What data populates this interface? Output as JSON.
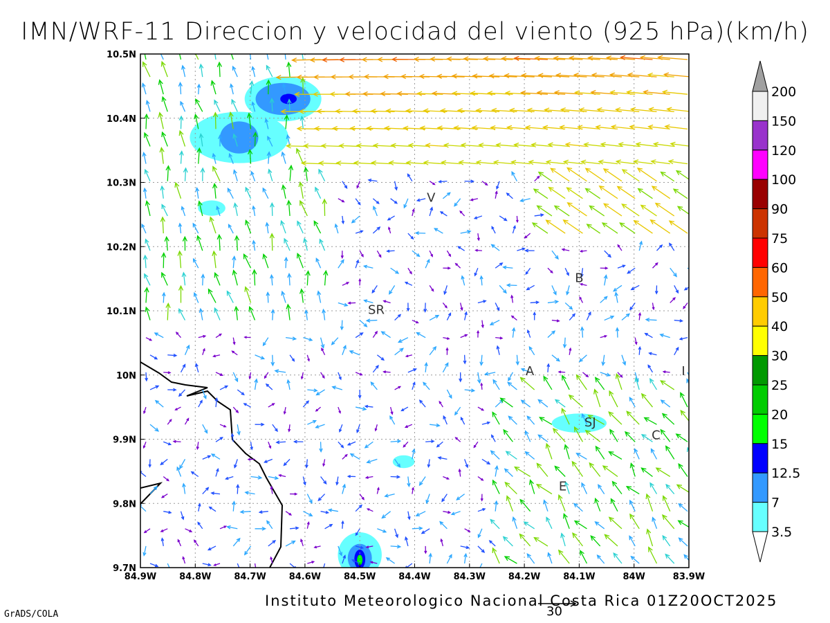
{
  "title": "IMN/WRF-11 Direccion y velocidad del viento (925 hPa)(km/h)",
  "footer": "Instituto Meteorologico Nacional Costa Rica 01Z20OCT2025",
  "software_label": "GrADS/COLA",
  "reference_vector_label": "30",
  "x_ticks": [
    "84.9W",
    "84.8W",
    "84.7W",
    "84.6W",
    "84.5W",
    "84.4W",
    "84.3W",
    "84.2W",
    "84.1W",
    "84W",
    "83.9W"
  ],
  "y_ticks": [
    "10.5N",
    "10.4N",
    "10.3N",
    "10.2N",
    "10.1N",
    "10N",
    "9.9N",
    "9.8N",
    "9.7N"
  ],
  "map_extent": {
    "lon_min": -84.9,
    "lon_max": -83.9,
    "lat_min": 9.7,
    "lat_max": 10.5
  },
  "place_labels": [
    {
      "text": "V",
      "lon": -84.37,
      "lat": 10.27
    },
    {
      "text": "B",
      "lon": -84.1,
      "lat": 10.145
    },
    {
      "text": "SR",
      "lon": -84.47,
      "lat": 10.095
    },
    {
      "text": "A",
      "lon": -84.19,
      "lat": 10.0
    },
    {
      "text": "SJ",
      "lon": -84.08,
      "lat": 9.92
    },
    {
      "text": "C",
      "lon": -83.96,
      "lat": 9.9
    },
    {
      "text": "E",
      "lon": -84.13,
      "lat": 9.82
    },
    {
      "text": "I",
      "lon": -83.91,
      "lat": 10.0
    }
  ],
  "colorbar": {
    "labels": [
      "3.5",
      "7",
      "12.5",
      "15",
      "20",
      "25",
      "30",
      "40",
      "50",
      "60",
      "75",
      "90",
      "100",
      "120",
      "150",
      "200"
    ],
    "colors": [
      "#66ffff",
      "#3399ff",
      "#0000ff",
      "#00ff00",
      "#00cc00",
      "#009900",
      "#ffff00",
      "#ffcc00",
      "#ff6600",
      "#ff0000",
      "#cc3300",
      "#990000",
      "#ff00ff",
      "#9933cc",
      "#f0f0f0"
    ],
    "over_color": "#a0a0a0",
    "under_color": "#ffffff"
  },
  "speed_shading": [
    {
      "lon": -84.64,
      "lat": 10.43,
      "rx": 0.07,
      "ry": 0.035,
      "level": "3.5"
    },
    {
      "lon": -84.64,
      "lat": 10.43,
      "rx": 0.05,
      "ry": 0.025,
      "level": "7"
    },
    {
      "lon": -84.63,
      "lat": 10.43,
      "rx": 0.015,
      "ry": 0.008,
      "level": "12.5"
    },
    {
      "lon": -84.72,
      "lat": 10.37,
      "rx": 0.09,
      "ry": 0.04,
      "level": "3.5"
    },
    {
      "lon": -84.72,
      "lat": 10.37,
      "rx": 0.035,
      "ry": 0.025,
      "level": "7"
    },
    {
      "lon": -84.77,
      "lat": 10.26,
      "rx": 0.025,
      "ry": 0.012,
      "level": "3.5"
    },
    {
      "lon": -84.1,
      "lat": 9.925,
      "rx": 0.05,
      "ry": 0.015,
      "level": "3.5"
    },
    {
      "lon": -84.42,
      "lat": 9.865,
      "rx": 0.02,
      "ry": 0.01,
      "level": "3.5"
    },
    {
      "lon": -84.5,
      "lat": 9.72,
      "rx": 0.04,
      "ry": 0.035,
      "level": "3.5"
    },
    {
      "lon": -84.5,
      "lat": 9.715,
      "rx": 0.022,
      "ry": 0.022,
      "level": "7"
    },
    {
      "lon": -84.5,
      "lat": 9.713,
      "rx": 0.01,
      "ry": 0.015,
      "level": "12.5"
    },
    {
      "lon": -84.5,
      "lat": 9.712,
      "rx": 0.005,
      "ry": 0.008,
      "level": "15"
    }
  ]
}
